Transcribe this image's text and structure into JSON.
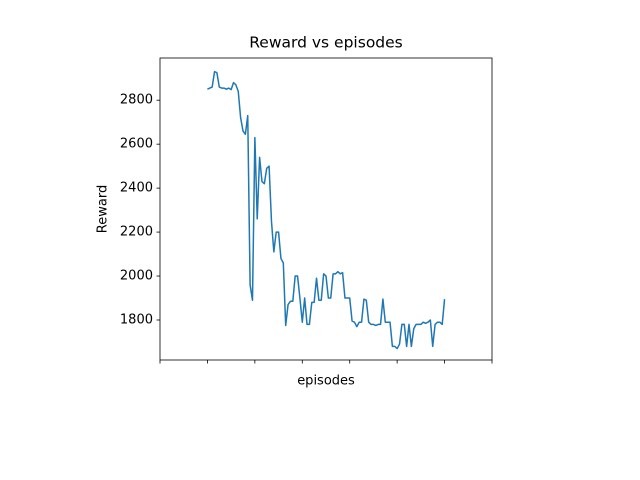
{
  "chart_data": {
    "type": "line",
    "title": "Reward vs episodes",
    "x_label": "episodes",
    "y_label": "Reward",
    "series": [
      {
        "name": "Reward",
        "color": "#1f77b4",
        "values": [
          2850,
          2855,
          2860,
          2930,
          2925,
          2860,
          2855,
          2855,
          2850,
          2855,
          2848,
          2880,
          2870,
          2840,
          2720,
          2660,
          2645,
          2730,
          1960,
          1890,
          2630,
          2260,
          2540,
          2430,
          2420,
          2490,
          2500,
          2250,
          2110,
          2200,
          2200,
          2080,
          2060,
          1775,
          1870,
          1885,
          1885,
          2000,
          2000,
          1900,
          1790,
          1900,
          1780,
          1780,
          1880,
          1880,
          1990,
          1890,
          1890,
          2010,
          2000,
          1900,
          1900,
          2010,
          2010,
          2020,
          2010,
          2015,
          1900,
          1900,
          1900,
          1795,
          1790,
          1770,
          1790,
          1790,
          1895,
          1890,
          1790,
          1780,
          1780,
          1775,
          1780,
          1780,
          1895,
          1790,
          1790,
          1790,
          1680,
          1680,
          1670,
          1690,
          1780,
          1780,
          1680,
          1780,
          1680,
          1760,
          1780,
          1780,
          1780,
          1790,
          1785,
          1790,
          1800,
          1680,
          1780,
          1790,
          1790,
          1780,
          1895
        ]
      }
    ],
    "xlim": [
      -20,
      120
    ],
    "xticks": [
      -20,
      0,
      20,
      40,
      60,
      80,
      100,
      120
    ],
    "ylim": [
      1618,
      2992
    ],
    "yticks": [
      1800,
      2000,
      2200,
      2400,
      2600,
      2800
    ]
  }
}
